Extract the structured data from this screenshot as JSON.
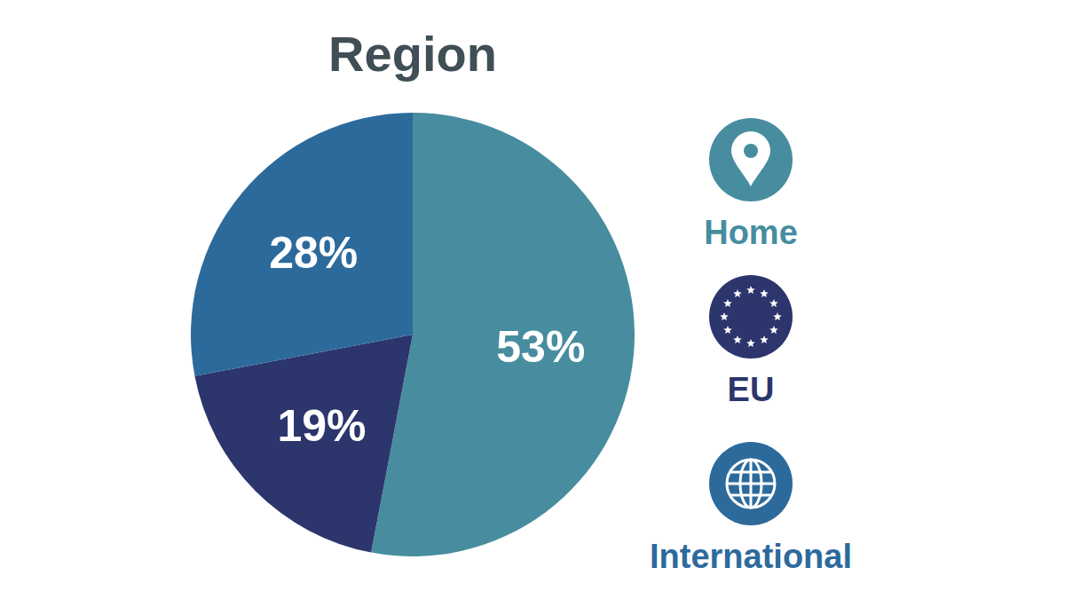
{
  "chart_data": {
    "type": "pie",
    "title": "Region",
    "categories": [
      "Home",
      "EU",
      "International"
    ],
    "values": [
      53,
      19,
      28
    ],
    "value_labels": [
      "53%",
      "19%",
      "28%"
    ],
    "colors": [
      "#478d9f",
      "#2c356c",
      "#2d6a9c"
    ],
    "data_labels": true,
    "legend": "right"
  }
}
